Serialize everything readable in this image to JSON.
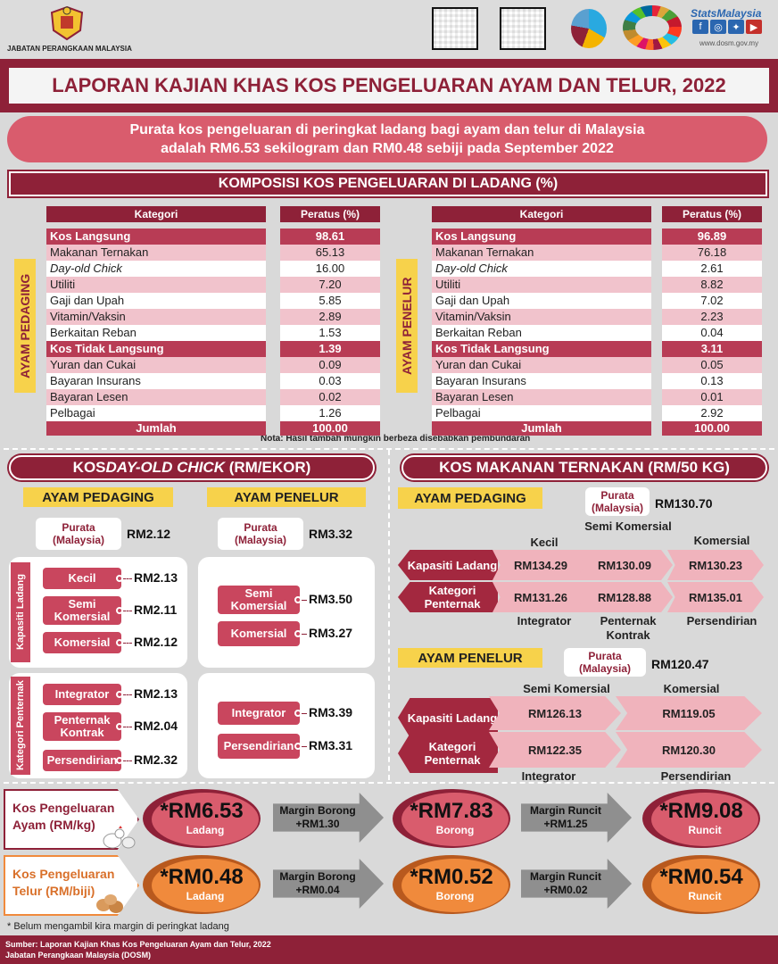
{
  "header": {
    "dept": "JABATAN PERANGKAAN MALAYSIA",
    "stats_brand": "StatsMalaysia",
    "website": "www.dosm.gov.my"
  },
  "title": "LAPORAN KAJIAN KHAS KOS PENGELUARAN AYAM DAN TELUR, 2022",
  "summary": {
    "line1": "Purata kos pengeluaran di peringkat ladang bagi ayam dan telur di Malaysia",
    "line2": "adalah RM6.53 sekilogram dan RM0.48 sebiji pada September 2022"
  },
  "composition": {
    "heading": "KOMPOSISI KOS PENGELUARAN DI LADANG (%)",
    "col_category": "Kategori",
    "col_percent": "Peratus (%)",
    "total_label": "Jumlah",
    "note": "Nota: Hasil tambah mungkin berbeza disebabkan pembundaran",
    "left": {
      "label": "AYAM PEDAGING",
      "rows": [
        {
          "cat": "Kos Langsung",
          "val": "98.61"
        },
        {
          "cat": "Makanan Ternakan",
          "val": "65.13"
        },
        {
          "cat": "Day-old Chick",
          "val": "16.00"
        },
        {
          "cat": "Utiliti",
          "val": "7.20"
        },
        {
          "cat": "Gaji dan Upah",
          "val": "5.85"
        },
        {
          "cat": "Vitamin/Vaksin",
          "val": "2.89"
        },
        {
          "cat": "Berkaitan Reban",
          "val": "1.53"
        },
        {
          "cat": "Kos Tidak Langsung",
          "val": "1.39"
        },
        {
          "cat": "Yuran dan Cukai",
          "val": "0.09"
        },
        {
          "cat": "Bayaran Insurans",
          "val": "0.03"
        },
        {
          "cat": "Bayaran Lesen",
          "val": "0.02"
        },
        {
          "cat": "Pelbagai",
          "val": "1.26"
        }
      ],
      "total": "100.00"
    },
    "right": {
      "label": "AYAM PENELUR",
      "rows": [
        {
          "cat": "Kos Langsung",
          "val": "96.89"
        },
        {
          "cat": "Makanan Ternakan",
          "val": "76.18"
        },
        {
          "cat": "Day-old Chick",
          "val": "2.61"
        },
        {
          "cat": "Utiliti",
          "val": "8.82"
        },
        {
          "cat": "Gaji dan Upah",
          "val": "7.02"
        },
        {
          "cat": "Vitamin/Vaksin",
          "val": "2.23"
        },
        {
          "cat": "Berkaitan Reban",
          "val": "0.04"
        },
        {
          "cat": "Kos Tidak Langsung",
          "val": "3.11"
        },
        {
          "cat": "Yuran dan Cukai",
          "val": "0.05"
        },
        {
          "cat": "Bayaran Insurans",
          "val": "0.13"
        },
        {
          "cat": "Bayaran Lesen",
          "val": "0.01"
        },
        {
          "cat": "Pelbagai",
          "val": "2.92"
        }
      ],
      "total": "100.00"
    }
  },
  "doc": {
    "heading_pre": "KOS ",
    "heading_em": "DAY-OLD CHICK",
    "heading_post": " (RM/EKOR)",
    "pedaging": "AYAM PEDAGING",
    "penelur": "AYAM PENELUR",
    "purata": "Purata",
    "malaysia": "(Malaysia)",
    "purata_pedaging": "RM2.12",
    "purata_penelur": "RM3.32",
    "kapasiti": "Kapasiti Ladang",
    "kategori": "Kategori Penternak",
    "ped_kap": [
      {
        "label": "Kecil",
        "val": "RM2.13"
      },
      {
        "label": "Semi Komersial",
        "val": "RM2.11"
      },
      {
        "label": "Komersial",
        "val": "RM2.12"
      }
    ],
    "ped_kat": [
      {
        "label": "Integrator",
        "val": "RM2.13"
      },
      {
        "label": "Penternak Kontrak",
        "val": "RM2.04"
      },
      {
        "label": "Persendirian",
        "val": "RM2.32"
      }
    ],
    "pen_kap": [
      {
        "label": "Semi Komersial",
        "val": "RM3.50"
      },
      {
        "label": "Komersial",
        "val": "RM3.27"
      }
    ],
    "pen_kat": [
      {
        "label": "Integrator",
        "val": "RM3.39"
      },
      {
        "label": "Persendirian",
        "val": "RM3.31"
      }
    ]
  },
  "feed": {
    "heading": "KOS MAKANAN TERNAKAN (RM/50 KG)",
    "pedaging": "AYAM PEDAGING",
    "penelur": "AYAM PENELUR",
    "purata_pedaging": "RM130.70",
    "purata_penelur": "RM120.47",
    "kapasiti": "Kapasiti Ladang",
    "kategori": "Kategori Penternak",
    "ped_top": [
      "Kecil",
      "Semi Komersial",
      "Komersial"
    ],
    "ped_kap_vals": [
      "RM134.29",
      "RM130.09",
      "RM130.23"
    ],
    "ped_kat_vals": [
      "RM131.26",
      "RM128.88",
      "RM135.01"
    ],
    "ped_bottom": [
      "Integrator",
      "Penternak Kontrak",
      "Persendirian"
    ],
    "pen_top": [
      "Semi Komersial",
      "Komersial"
    ],
    "pen_kap_vals": [
      "RM126.13",
      "RM119.05"
    ],
    "pen_kat_vals": [
      "RM122.35",
      "RM120.30"
    ],
    "pen_bottom": [
      "Integrator",
      "Persendirian"
    ]
  },
  "bottom": {
    "ayam_label": "Kos Pengeluaran Ayam (RM/kg)",
    "telur_label": "Kos Pengeluaran Telur (RM/biji)",
    "ayam": {
      "ladang": "*RM6.53",
      "borong": "*RM7.83",
      "runcit": "*RM9.08",
      "m_borong": "Margin Borong",
      "m_borong_val": "+RM1.30",
      "m_runcit": "Margin Runcit",
      "m_runcit_val": "+RM1.25"
    },
    "telur": {
      "ladang": "*RM0.48",
      "borong": "*RM0.52",
      "runcit": "*RM0.54",
      "m_borong": "Margin Borong",
      "m_borong_val": "+RM0.04",
      "m_runcit": "Margin Runcit",
      "m_runcit_val": "+RM0.02"
    },
    "ladang": "Ladang",
    "borong": "Borong",
    "runcit": "Runcit",
    "footnote": "* Belum mengambil kira margin di peringkat ladang"
  },
  "footer": {
    "line1": "Sumber: Laporan Kajian Khas Kos Pengeluaran Ayam dan Telur, 2022",
    "line2": "Jabatan Perangkaan Malaysia (DOSM)"
  },
  "colors": {
    "maroon": "#8e2138",
    "pink": "#d95c6d",
    "yellow": "#f7d24b",
    "orange": "#f08a3c"
  }
}
